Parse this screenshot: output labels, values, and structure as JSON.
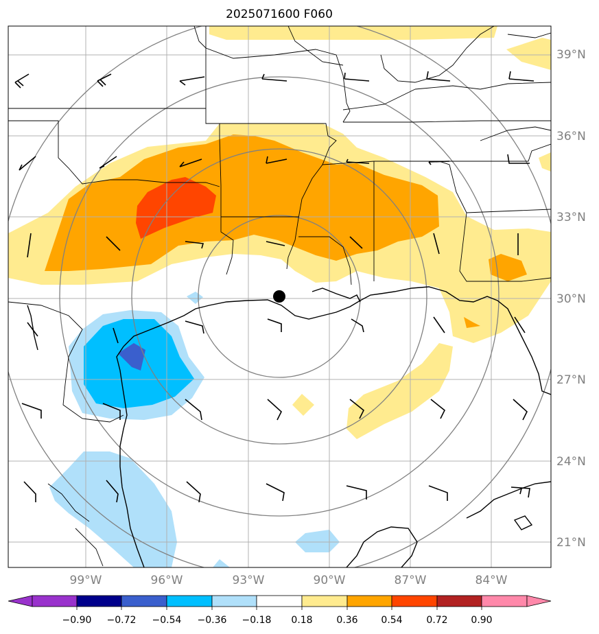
{
  "title": "2025071600 F060",
  "latitude_labels": [
    "39°N",
    "36°N",
    "33°N",
    "30°N",
    "27°N",
    "24°N",
    "21°N"
  ],
  "longitude_labels": [
    "99°W",
    "96°W",
    "93°W",
    "90°W",
    "87°W",
    "84°W"
  ],
  "colorbar": {
    "ticks": [
      "−0.90",
      "−0.72",
      "−0.54",
      "−0.36",
      "−0.18",
      "0.18",
      "0.36",
      "0.54",
      "0.72",
      "0.90"
    ],
    "colors": [
      "#9932cc",
      "#00008b",
      "#3a5fcd",
      "#00bfff",
      "#b0e0fa",
      "#ffffff",
      "#ffeb8f",
      "#ffa500",
      "#ff4500",
      "#b22222",
      "#ff88aa"
    ]
  },
  "map": {
    "center_marker": "filled-circle",
    "range_rings": 4,
    "fill_colors": {
      "light_yellow": "#ffeb8f",
      "orange": "#ffa500",
      "red_orange": "#ff4500",
      "light_blue": "#b0e0fa",
      "deep_sky_blue": "#00bfff",
      "royal_blue": "#3a5fcd"
    }
  }
}
